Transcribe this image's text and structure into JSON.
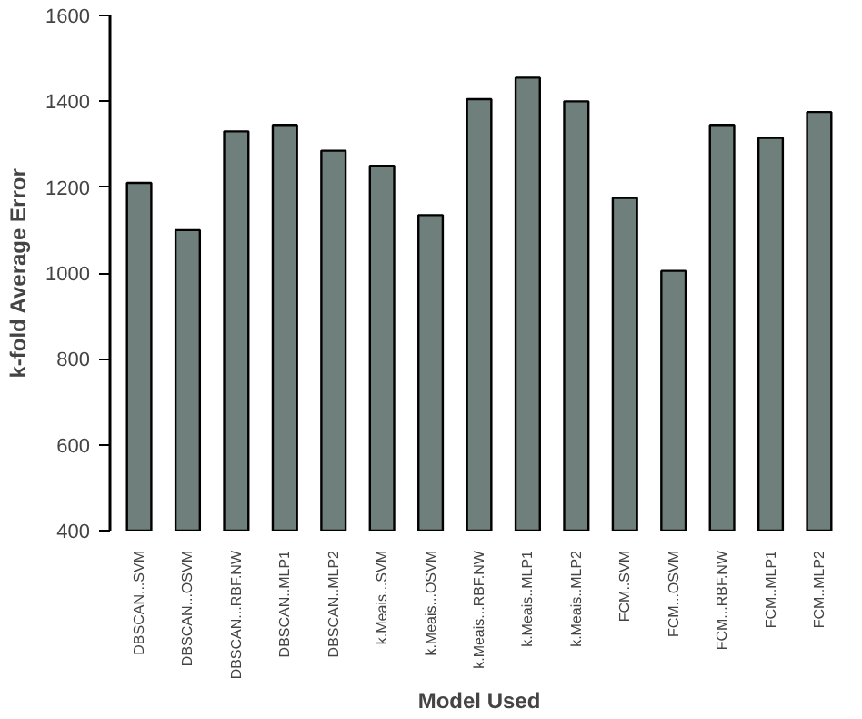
{
  "chart_data": {
    "type": "bar",
    "xlabel": "Model Used",
    "ylabel": "k-fold Average Error",
    "categories": [
      "DBSCAN...SVM",
      "DBSCAN...OSVM",
      "DBSCAN...RBF.NW",
      "DBSCAN..MLP1",
      "DBSCAN..MLP2",
      "k.Meais...SVM",
      "k.Meais...OSVM",
      "k.Meais...RBF.NW",
      "k.Meais..MLP1",
      "k.Meais..MLP2",
      "FCM..SVM",
      "FCM...OSVM",
      "FCM...RBF.NW",
      "FCM..MLP1",
      "FCM..MLP2"
    ],
    "values": [
      1210,
      1100,
      1330,
      1345,
      1285,
      1250,
      1135,
      1405,
      1455,
      1400,
      1175,
      1005,
      1345,
      1315,
      1375
    ],
    "color": "#6f7f7b",
    "ylim": [
      400,
      1600
    ],
    "yticks": [
      400,
      600,
      800,
      1000,
      1200,
      1400,
      1600
    ],
    "grid": false
  }
}
